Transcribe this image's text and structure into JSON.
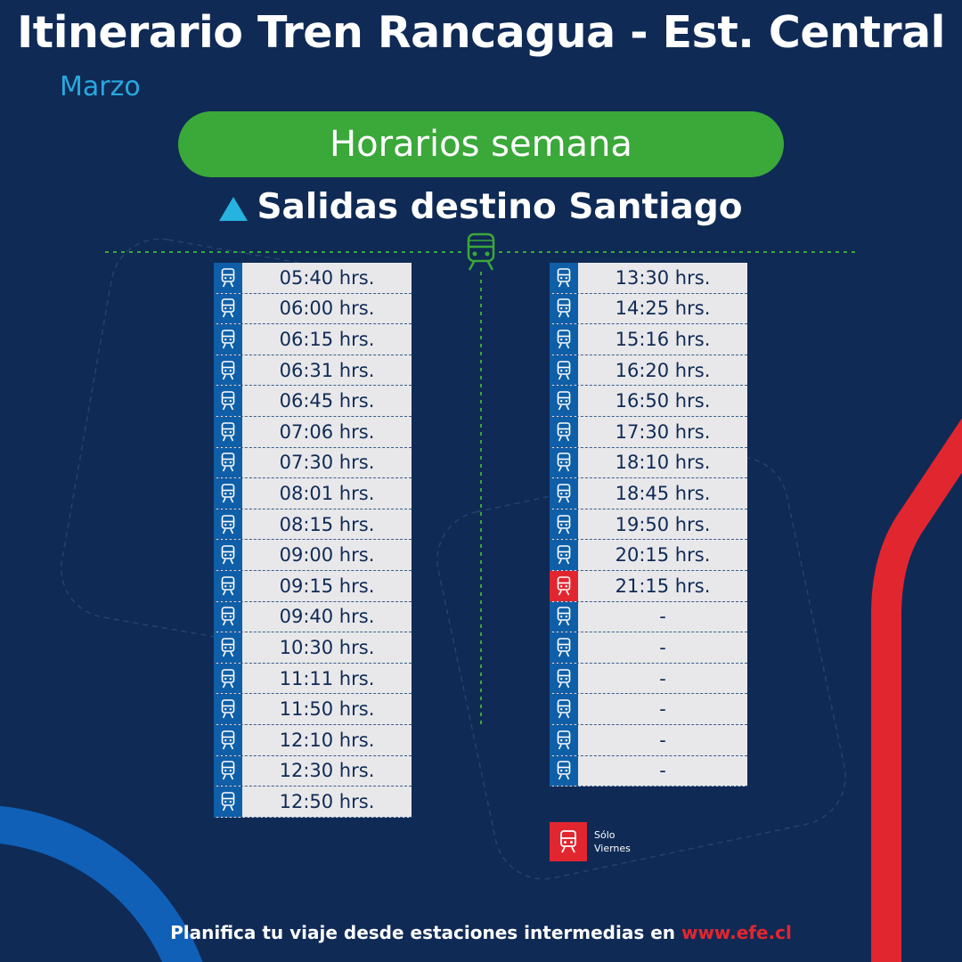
{
  "header": {
    "title": "Itinerario Tren Rancagua - Est. Central",
    "subtitle": "Marzo"
  },
  "schedule_type": "Horarios semana",
  "direction": {
    "icon": "triangle-up-icon",
    "label": "Salidas destino Santiago"
  },
  "left_column": [
    {
      "time": "05:40 hrs.",
      "friday_only": false
    },
    {
      "time": "06:00 hrs.",
      "friday_only": false
    },
    {
      "time": "06:15 hrs.",
      "friday_only": false
    },
    {
      "time": "06:31 hrs.",
      "friday_only": false
    },
    {
      "time": "06:45 hrs.",
      "friday_only": false
    },
    {
      "time": "07:06 hrs.",
      "friday_only": false
    },
    {
      "time": "07:30 hrs.",
      "friday_only": false
    },
    {
      "time": "08:01 hrs.",
      "friday_only": false
    },
    {
      "time": "08:15 hrs.",
      "friday_only": false
    },
    {
      "time": "09:00 hrs.",
      "friday_only": false
    },
    {
      "time": "09:15 hrs.",
      "friday_only": false
    },
    {
      "time": "09:40 hrs.",
      "friday_only": false
    },
    {
      "time": "10:30 hrs.",
      "friday_only": false
    },
    {
      "time": "11:11 hrs.",
      "friday_only": false
    },
    {
      "time": "11:50 hrs.",
      "friday_only": false
    },
    {
      "time": "12:10 hrs.",
      "friday_only": false
    },
    {
      "time": "12:30 hrs.",
      "friday_only": false
    },
    {
      "time": "12:50 hrs.",
      "friday_only": false
    }
  ],
  "right_column": [
    {
      "time": "13:30 hrs.",
      "friday_only": false
    },
    {
      "time": "14:25 hrs.",
      "friday_only": false
    },
    {
      "time": "15:16 hrs.",
      "friday_only": false
    },
    {
      "time": "16:20 hrs.",
      "friday_only": false
    },
    {
      "time": "16:50 hrs.",
      "friday_only": false
    },
    {
      "time": "17:30 hrs.",
      "friday_only": false
    },
    {
      "time": "18:10 hrs.",
      "friday_only": false
    },
    {
      "time": "18:45 hrs.",
      "friday_only": false
    },
    {
      "time": "19:50 hrs.",
      "friday_only": false
    },
    {
      "time": "20:15 hrs.",
      "friday_only": false
    },
    {
      "time": "21:15 hrs.",
      "friday_only": true
    },
    {
      "time": "-",
      "friday_only": false
    },
    {
      "time": "-",
      "friday_only": false
    },
    {
      "time": "-",
      "friday_only": false
    },
    {
      "time": "-",
      "friday_only": false
    },
    {
      "time": "-",
      "friday_only": false
    },
    {
      "time": "-",
      "friday_only": false
    }
  ],
  "legend": {
    "icon": "train-icon",
    "line1": "Sólo",
    "line2": "Viernes"
  },
  "footer": {
    "text": "Planifica tu viaje desde estaciones intermedias en ",
    "link": "www.efe.cl"
  },
  "colors": {
    "background": "#0f2a55",
    "accent_green": "#3ba83a",
    "accent_blue": "#27a9df",
    "row_icon_blue": "#0f5fa8",
    "friday_red": "#e2262f"
  }
}
